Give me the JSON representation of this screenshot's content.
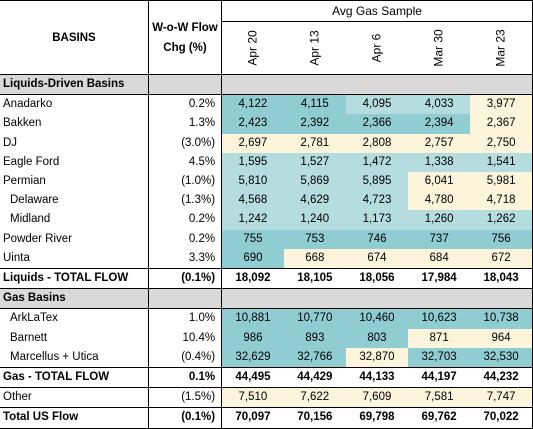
{
  "header": {
    "sample_title": "Avg Gas Sample",
    "basins_label": "BASINS",
    "chg_label_line1": "W-o-W Flow",
    "chg_label_line2": "Chg (%)",
    "dates": [
      "Apr 20",
      "Apr 13",
      "Apr 6",
      "Mar 30",
      "Mar 23"
    ]
  },
  "colors": {
    "teal_strong": "#8fcdd3",
    "teal_mid": "#b5dde0",
    "cream": "#fdf4dc",
    "section_gray": "#d9d9d9"
  },
  "sections": [
    {
      "title": "Liquids-Driven Basins",
      "rows": [
        {
          "label": "Anadarko",
          "chg": "0.2%",
          "values": [
            "4,122",
            "4,115",
            "4,095",
            "4,033",
            "3,977"
          ],
          "indent": 0
        },
        {
          "label": "Bakken",
          "chg": "1.3%",
          "values": [
            "2,423",
            "2,392",
            "2,366",
            "2,394",
            "2,367"
          ],
          "indent": 0
        },
        {
          "label": "DJ",
          "chg": "(3.0%)",
          "values": [
            "2,697",
            "2,781",
            "2,808",
            "2,757",
            "2,750"
          ],
          "indent": 0
        },
        {
          "label": "Eagle Ford",
          "chg": "4.5%",
          "values": [
            "1,595",
            "1,527",
            "1,472",
            "1,338",
            "1,541"
          ],
          "indent": 0
        },
        {
          "label": "Permian",
          "chg": "(1.0%)",
          "values": [
            "5,810",
            "5,869",
            "5,895",
            "6,041",
            "5,981"
          ],
          "indent": 0
        },
        {
          "label": "Delaware",
          "chg": "(1.3%)",
          "values": [
            "4,568",
            "4,629",
            "4,723",
            "4,780",
            "4,718"
          ],
          "indent": 1
        },
        {
          "label": "Midland",
          "chg": "0.2%",
          "values": [
            "1,242",
            "1,240",
            "1,173",
            "1,260",
            "1,262"
          ],
          "indent": 1
        },
        {
          "label": "Powder River",
          "chg": "0.2%",
          "values": [
            "755",
            "753",
            "746",
            "737",
            "756"
          ],
          "indent": 0
        },
        {
          "label": "Uinta",
          "chg": "3.3%",
          "values": [
            "690",
            "668",
            "674",
            "684",
            "672"
          ],
          "indent": 0
        }
      ],
      "total": {
        "label": "Liquids - TOTAL FLOW",
        "chg": "(0.1%)",
        "values": [
          "18,092",
          "18,105",
          "18,056",
          "17,984",
          "18,043"
        ]
      }
    },
    {
      "title": "Gas Basins",
      "rows": [
        {
          "label": "ArkLaTex",
          "chg": "1.0%",
          "values": [
            "10,881",
            "10,770",
            "10,460",
            "10,623",
            "10,738"
          ],
          "indent": 1
        },
        {
          "label": "Barnett",
          "chg": "10.4%",
          "values": [
            "986",
            "893",
            "803",
            "871",
            "964"
          ],
          "indent": 1
        },
        {
          "label": "Marcellus + Utica",
          "chg": "(0.4%)",
          "values": [
            "32,629",
            "32,766",
            "32,870",
            "32,703",
            "32,530"
          ],
          "indent": 1
        }
      ],
      "total": {
        "label": "Gas - TOTAL FLOW",
        "chg": "0.1%",
        "values": [
          "44,495",
          "44,429",
          "44,133",
          "44,197",
          "44,232"
        ]
      }
    }
  ],
  "other": {
    "label": "Other",
    "chg": "(1.5%)",
    "values": [
      "7,510",
      "7,622",
      "7,609",
      "7,581",
      "7,747"
    ]
  },
  "grand_total": {
    "label": "Total US Flow",
    "chg": "(0.1%)",
    "values": [
      "70,097",
      "70,156",
      "69,798",
      "69,762",
      "70,022"
    ]
  }
}
